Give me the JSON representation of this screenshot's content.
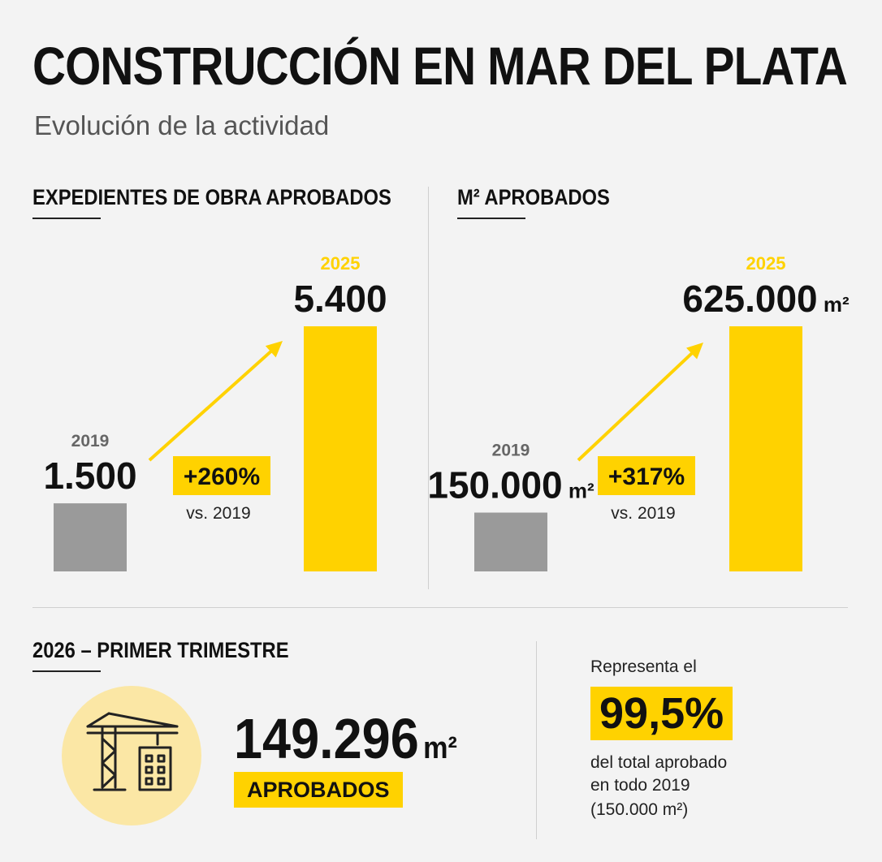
{
  "header": {
    "title": "CONSTRUCCIÓN EN MAR DEL PLATA",
    "subtitle": "Evolución de la actividad"
  },
  "colors": {
    "accent": "#ffd200",
    "gray_bar": "#9a9a9a",
    "dark": "#111111"
  },
  "chart_data": [
    {
      "type": "bar",
      "title": "EXPEDIENTES DE OBRA APROBADOS",
      "categories": [
        "2019",
        "2025"
      ],
      "values": [
        1500,
        5400
      ],
      "value_labels": [
        "1.500",
        "5.400"
      ],
      "unit": "",
      "change_label": "+260%",
      "change_note": "vs. 2019",
      "ylim": [
        0,
        5400
      ]
    },
    {
      "type": "bar",
      "title": "M² APROBADOS",
      "categories": [
        "2019",
        "2025"
      ],
      "values": [
        150000,
        625000
      ],
      "value_labels": [
        "150.000",
        "625.000"
      ],
      "unit": "m²",
      "change_label": "+317%",
      "change_note": "vs. 2019",
      "ylim": [
        0,
        625000
      ]
    }
  ],
  "quarter": {
    "title": "2026 – PRIMER TRIMESTRE",
    "icon": "crane-building-icon",
    "value": "149.296",
    "unit": "m²",
    "tag": "APROBADOS",
    "represent_label": "Representa el",
    "percent": "99,5%",
    "note_line1": "del total aprobado",
    "note_line2": "en todo 2019",
    "note_line3": "(150.000 m²)"
  }
}
